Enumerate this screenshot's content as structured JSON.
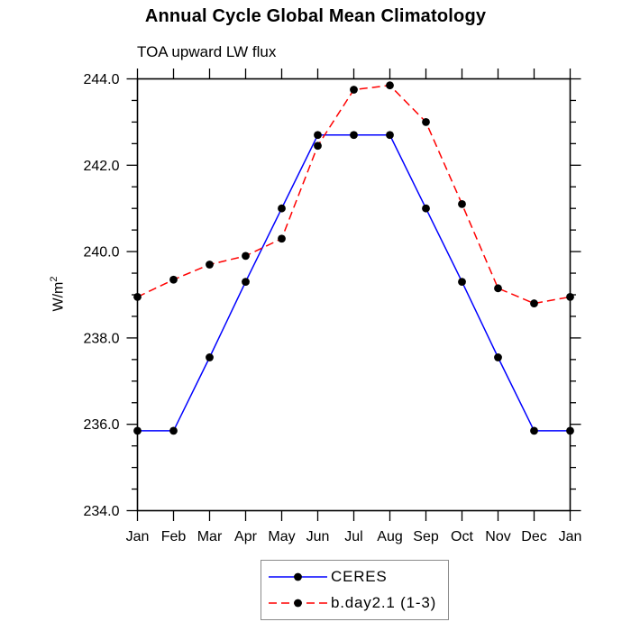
{
  "page": {
    "background": "#ffffff"
  },
  "chart_data": {
    "type": "line",
    "title": "Annual Cycle Global Mean Climatology",
    "subtitle": "TOA upward LW flux",
    "ylabel_base": "W/m",
    "ylabel_sup": "2",
    "categories": [
      "Jan",
      "Feb",
      "Mar",
      "Apr",
      "May",
      "Jun",
      "Jul",
      "Aug",
      "Sep",
      "Oct",
      "Nov",
      "Dec",
      "Jan"
    ],
    "ylim": [
      234.0,
      244.0
    ],
    "y_major_step": 2.0,
    "y_minor_step": 0.5,
    "y_tick_labels": [
      "234.0",
      "236.0",
      "238.0",
      "240.0",
      "242.0",
      "244.0"
    ],
    "grid": false,
    "axes_box": true,
    "legend_position": "bottom-center",
    "marker": {
      "shape": "circle",
      "color": "#000000",
      "radius": 4.4
    },
    "series": [
      {
        "name": "CERES",
        "color": "#0000ff",
        "line_style": "solid",
        "values": [
          235.85,
          235.85,
          237.55,
          239.3,
          241.0,
          242.7,
          242.7,
          242.7,
          241.0,
          239.3,
          237.55,
          235.85,
          235.85
        ]
      },
      {
        "name": "b.day2.1 (1-3)",
        "color": "#ff0000",
        "line_style": "dashed",
        "values": [
          238.95,
          239.35,
          239.7,
          239.9,
          240.3,
          242.45,
          243.75,
          243.85,
          243.0,
          241.1,
          239.15,
          238.8,
          238.95
        ]
      }
    ]
  },
  "colors": {
    "axis": "#000000",
    "text": "#000000",
    "legend_border": "#8a8a8a"
  }
}
